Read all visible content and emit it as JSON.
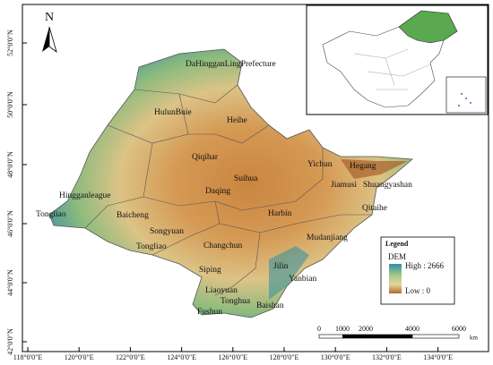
{
  "map": {
    "north": "N",
    "latitude_labels": [
      "52°0'0\"N",
      "50°0'0\"N",
      "48°0'0\"N",
      "46°0'0\"N",
      "44°0'0\"N",
      "42°0'0\"N"
    ],
    "longitude_labels": [
      "118°0'0\"E",
      "120°0'0\"E",
      "122°0'0\"E",
      "124°0'0\"E",
      "126°0'0\"E",
      "128°0'0\"E",
      "130°0'0\"E",
      "132°0'0\"E",
      "134°0'0\"E"
    ],
    "places": [
      "DaHingganLingPrefecture",
      "HulunBuie",
      "Heihe",
      "Qiqihar",
      "Yichun",
      "Hegang",
      "Suihua",
      "Daqing",
      "Jiamusi",
      "Shuangyashan",
      "Hingganleague",
      "Tongliao",
      "Baicheng",
      "Harbin",
      "Qitaihe",
      "Songyuan",
      "Changchun",
      "Mudanjiang",
      "Tongliao",
      "Siping",
      "Jilin",
      "Liaoyuan",
      "Yanbian",
      "Tonghua",
      "Fushun",
      "Baishan"
    ],
    "legend": {
      "title": "Legend",
      "layer": "DEM",
      "high": "High : 2666",
      "low": "Low : 0"
    },
    "scale_bar": {
      "labels": [
        "0",
        "1000",
        "2000",
        "4000",
        "6000"
      ],
      "unit": "km"
    }
  }
}
